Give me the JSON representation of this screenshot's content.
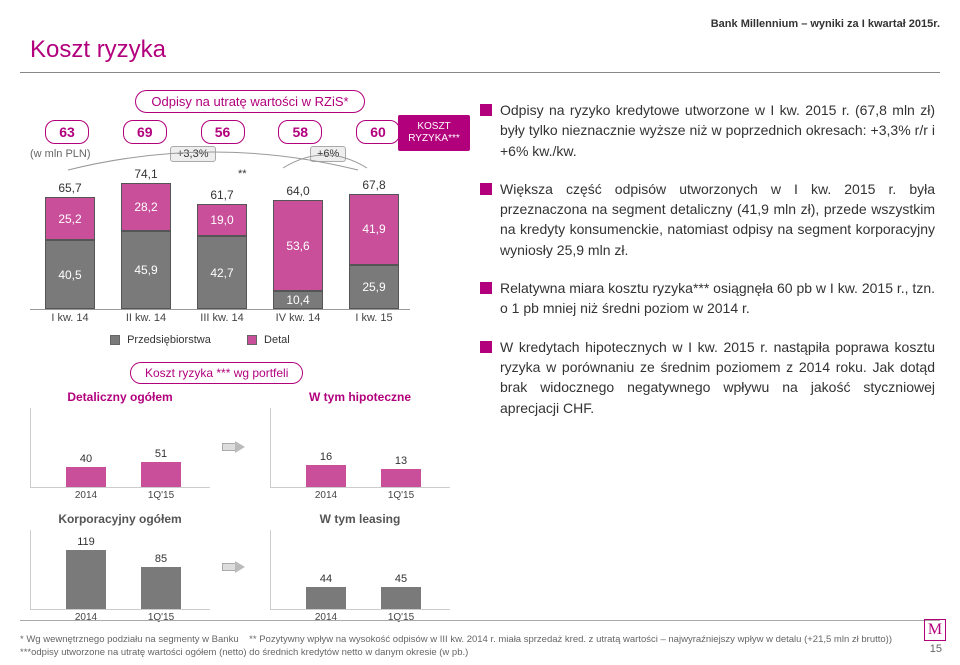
{
  "brand_color": "#b2007d",
  "detail_color": "#c94f9b",
  "corporate_color": "#7a7a7a",
  "accent_text": "#b2007d",
  "header_line": "Bank Millennium – wyniki za I kwartał 2015r.",
  "page_title": "Koszt ryzyka",
  "page_number": "15",
  "logo_letter": "M",
  "chart1": {
    "pill_title": "Odpisy na utratę wartości w RZiS*",
    "units": "(w mln PLN)",
    "totals_color": "#b2007d",
    "badge": "KOSZT RYZYKA***",
    "growth1": "+3,3%",
    "growth2": "+6%",
    "star_note": "**",
    "legend": {
      "corp": "Przedsiębiorstwa",
      "retail": "Detal"
    },
    "x": [
      "I kw. 14",
      "II kw. 14",
      "III kw. 14",
      "IV kw. 14",
      "I kw. 15"
    ],
    "totals": [
      "63",
      "69",
      "56",
      "58",
      "60"
    ],
    "tops": [
      "65,7",
      "74,1",
      "61,7",
      "64,0",
      "67,8"
    ],
    "retail": [
      "25,2",
      "28,2",
      "19,0",
      "53,6",
      "41,9"
    ],
    "corp": [
      "40,5",
      "45,9",
      "42,7",
      "10,4",
      "25,9"
    ],
    "retail_v": [
      25.2,
      28.2,
      19.0,
      53.6,
      41.9
    ],
    "corp_v": [
      40.5,
      45.9,
      42.7,
      10.4,
      25.9
    ]
  },
  "portfolio_pill": "Koszt ryzyka *** wg portfeli",
  "mini": [
    {
      "title": "Detaliczny ogółem",
      "color": "#c94f9b",
      "x": [
        "2014",
        "1Q'15"
      ],
      "vals": [
        "40",
        "51"
      ],
      "v": [
        40,
        51
      ],
      "max": 140
    },
    {
      "title": "W tym hipoteczne",
      "color": "#c94f9b",
      "x": [
        "2014",
        "1Q'15"
      ],
      "vals": [
        "16",
        "13"
      ],
      "v": [
        16,
        13
      ],
      "max": 50
    },
    {
      "title": "Korporacyjny ogółem",
      "color": "#7a7a7a",
      "x": [
        "2014",
        "1Q'15"
      ],
      "vals": [
        "119",
        "85"
      ],
      "v": [
        119,
        85
      ],
      "max": 140
    },
    {
      "title": "W tym leasing",
      "color": "#7a7a7a",
      "x": [
        "2014",
        "1Q'15"
      ],
      "vals": [
        "44",
        "45"
      ],
      "v": [
        44,
        45
      ],
      "max": 140
    }
  ],
  "bullets": [
    "Odpisy na ryzyko kredytowe utworzone w I kw. 2015 r. (67,8 mln zł) były tylko nieznacznie wyższe niż w poprzednich okresach: +3,3% r/r i +6% kw./kw.",
    "Większa część odpisów utworzonych w I kw. 2015 r. była przeznaczona na segment detaliczny (41,9 mln zł), przede wszystkim na kredyty konsumenckie, natomiast odpisy na segment korporacyjny wyniosły 25,9 mln zł.",
    "Relatywna miara kosztu ryzyka*** osiągnęła 60 pb w I kw. 2015 r., tzn. o 1 pb mniej niż średni poziom w 2014 r.",
    "W kredytach hipotecznych w I kw. 2015 r. nastąpiła poprawa kosztu ryzyka w porównaniu ze średnim poziomem z 2014 roku. Jak dotąd brak widocznego negatywnego wpływu na jakość styczniowej aprecjacji CHF."
  ],
  "footnote": "* Wg wewnętrznego podziału na segmenty w Banku    ** Pozytywny wpływ na wysokość odpisów w III kw. 2014 r. miała sprzedaż kred. z utratą wartości – najwyraźniejszy wpływ w detalu (+21,5 mln zł brutto)) ***odpisy utworzone na utratę wartości ogółem (netto) do średnich kredytów netto w danym okresie (w pb.)"
}
